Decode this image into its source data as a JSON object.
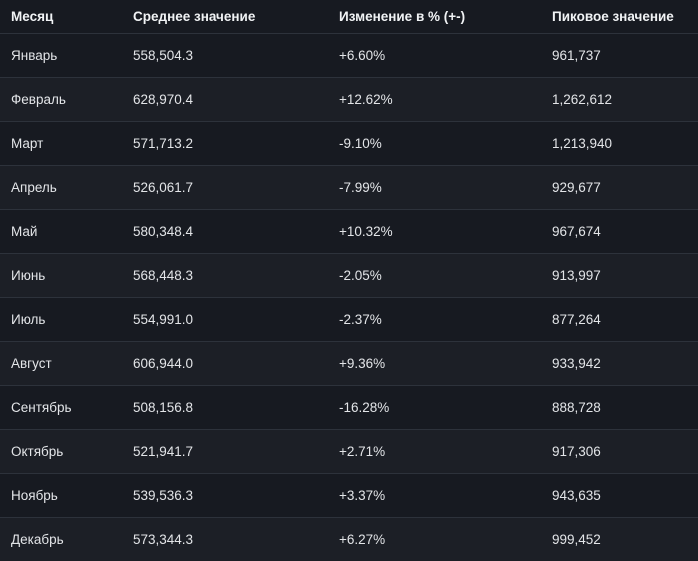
{
  "table": {
    "headers": {
      "month": "Месяц",
      "average": "Среднее значение",
      "change": "Изменение в % (+-)",
      "peak": "Пиковое значение"
    },
    "rows": [
      {
        "month": "Январь",
        "average": "558,504.3",
        "change": "+6.60%",
        "peak": "961,737"
      },
      {
        "month": "Февраль",
        "average": "628,970.4",
        "change": "+12.62%",
        "peak": "1,262,612"
      },
      {
        "month": "Март",
        "average": "571,713.2",
        "change": "-9.10%",
        "peak": "1,213,940"
      },
      {
        "month": "Апрель",
        "average": "526,061.7",
        "change": "-7.99%",
        "peak": "929,677"
      },
      {
        "month": "Май",
        "average": "580,348.4",
        "change": "+10.32%",
        "peak": "967,674"
      },
      {
        "month": "Июнь",
        "average": "568,448.3",
        "change": "-2.05%",
        "peak": "913,997"
      },
      {
        "month": "Июль",
        "average": "554,991.0",
        "change": "-2.37%",
        "peak": "877,264"
      },
      {
        "month": "Август",
        "average": "606,944.0",
        "change": "+9.36%",
        "peak": "933,942"
      },
      {
        "month": "Сентябрь",
        "average": "508,156.8",
        "change": "-16.28%",
        "peak": "888,728"
      },
      {
        "month": "Октябрь",
        "average": "521,941.7",
        "change": "+2.71%",
        "peak": "917,306"
      },
      {
        "month": "Ноябрь",
        "average": "539,536.3",
        "change": "+3.37%",
        "peak": "943,635"
      },
      {
        "month": "Декабрь",
        "average": "573,344.3",
        "change": "+6.27%",
        "peak": "999,452"
      }
    ]
  },
  "colors": {
    "background": "#171a21",
    "row_alt": "#1c1f26",
    "divider": "#2d323b",
    "text": "#e3e5e8"
  }
}
